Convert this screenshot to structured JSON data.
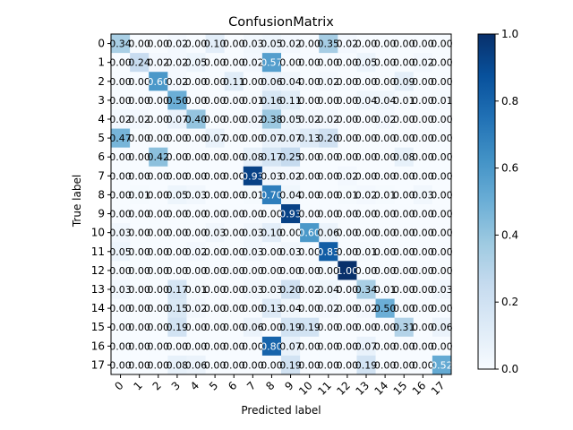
{
  "chart_data": {
    "type": "heatmap",
    "title": "ConfusionMatrix",
    "xlabel": "Predicted label",
    "ylabel": "True label",
    "x_categories": [
      "0",
      "1",
      "2",
      "3",
      "4",
      "5",
      "6",
      "7",
      "8",
      "9",
      "10",
      "11",
      "12",
      "13",
      "14",
      "15",
      "16",
      "17"
    ],
    "y_categories": [
      "0",
      "1",
      "2",
      "3",
      "4",
      "5",
      "6",
      "7",
      "8",
      "9",
      "10",
      "11",
      "12",
      "13",
      "14",
      "15",
      "16",
      "17"
    ],
    "x_tick_rotation": "45 degrees",
    "value_format": "2 decimals",
    "colormap": "Blues",
    "color_low": "#f7fbff",
    "color_high": "#08306b",
    "vmin": 0.0,
    "vmax": 1.0,
    "colorbar_ticks": [
      "0.0",
      "0.2",
      "0.4",
      "0.6",
      "0.8",
      "1.0"
    ],
    "colorbar_position": "right",
    "values": [
      [
        0.34,
        0.0,
        0.0,
        0.02,
        0.0,
        0.1,
        0.0,
        0.03,
        0.05,
        0.02,
        0.0,
        0.35,
        0.02,
        0.0,
        0.0,
        0.0,
        0.0,
        0.0
      ],
      [
        0.0,
        0.24,
        0.02,
        0.02,
        0.05,
        0.0,
        0.0,
        0.02,
        0.57,
        0.0,
        0.0,
        0.0,
        0.0,
        0.05,
        0.0,
        0.0,
        0.02,
        0.0
      ],
      [
        0.0,
        0.0,
        0.6,
        0.02,
        0.0,
        0.0,
        0.11,
        0.0,
        0.06,
        0.04,
        0.0,
        0.02,
        0.0,
        0.0,
        0.0,
        0.09,
        0.0,
        0.0
      ],
      [
        0.0,
        0.0,
        0.0,
        0.5,
        0.0,
        0.0,
        0.0,
        0.01,
        0.16,
        0.11,
        0.0,
        0.0,
        0.0,
        0.04,
        0.04,
        0.01,
        0.0,
        0.01
      ],
      [
        0.02,
        0.02,
        0.0,
        0.07,
        0.4,
        0.0,
        0.0,
        0.02,
        0.38,
        0.05,
        0.02,
        0.02,
        0.0,
        0.0,
        0.02,
        0.0,
        0.0,
        0.0
      ],
      [
        0.47,
        0.0,
        0.0,
        0.0,
        0.0,
        0.07,
        0.0,
        0.0,
        0.07,
        0.07,
        0.13,
        0.2,
        0.0,
        0.0,
        0.0,
        0.0,
        0.0,
        0.0
      ],
      [
        0.0,
        0.0,
        0.42,
        0.0,
        0.0,
        0.0,
        0.0,
        0.08,
        0.17,
        0.25,
        0.0,
        0.0,
        0.0,
        0.0,
        0.0,
        0.08,
        0.0,
        0.0
      ],
      [
        0.0,
        0.0,
        0.0,
        0.0,
        0.0,
        0.0,
        0.0,
        0.93,
        0.03,
        0.02,
        0.0,
        0.0,
        0.02,
        0.0,
        0.0,
        0.0,
        0.0,
        0.0
      ],
      [
        0.0,
        0.01,
        0.0,
        0.05,
        0.03,
        0.0,
        0.0,
        0.01,
        0.7,
        0.04,
        0.0,
        0.0,
        0.01,
        0.02,
        0.01,
        0.0,
        0.03,
        0.0
      ],
      [
        0.0,
        0.0,
        0.0,
        0.0,
        0.0,
        0.0,
        0.0,
        0.0,
        0.0,
        0.93,
        0.0,
        0.0,
        0.0,
        0.0,
        0.0,
        0.0,
        0.0,
        0.0
      ],
      [
        0.03,
        0.0,
        0.0,
        0.0,
        0.0,
        0.03,
        0.0,
        0.03,
        0.1,
        0.0,
        0.6,
        0.06,
        0.0,
        0.0,
        0.0,
        0.0,
        0.0,
        0.0
      ],
      [
        0.05,
        0.0,
        0.0,
        0.0,
        0.02,
        0.0,
        0.0,
        0.03,
        0.0,
        0.03,
        0.0,
        0.83,
        0.0,
        0.01,
        0.0,
        0.0,
        0.0,
        0.0
      ],
      [
        0.0,
        0.0,
        0.0,
        0.0,
        0.0,
        0.0,
        0.0,
        0.0,
        0.0,
        0.0,
        0.0,
        0.0,
        1.0,
        0.0,
        0.0,
        0.0,
        0.0,
        0.0
      ],
      [
        0.03,
        0.0,
        0.0,
        0.17,
        0.01,
        0.0,
        0.0,
        0.03,
        0.03,
        0.2,
        0.02,
        0.04,
        0.0,
        0.34,
        0.01,
        0.0,
        0.0,
        0.03
      ],
      [
        0.0,
        0.0,
        0.0,
        0.15,
        0.02,
        0.0,
        0.0,
        0.0,
        0.13,
        0.04,
        0.0,
        0.02,
        0.0,
        0.02,
        0.5,
        0.0,
        0.0,
        0.0
      ],
      [
        0.0,
        0.0,
        0.0,
        0.19,
        0.0,
        0.0,
        0.0,
        0.06,
        0.0,
        0.19,
        0.19,
        0.0,
        0.0,
        0.0,
        0.0,
        0.31,
        0.0,
        0.06
      ],
      [
        0.0,
        0.0,
        0.0,
        0.0,
        0.0,
        0.0,
        0.0,
        0.0,
        0.8,
        0.07,
        0.0,
        0.0,
        0.0,
        0.07,
        0.0,
        0.0,
        0.0,
        0.0
      ],
      [
        0.0,
        0.0,
        0.0,
        0.08,
        0.06,
        0.0,
        0.0,
        0.0,
        0.0,
        0.19,
        0.0,
        0.0,
        0.0,
        0.19,
        0.0,
        0.0,
        0.0,
        0.52
      ]
    ]
  }
}
